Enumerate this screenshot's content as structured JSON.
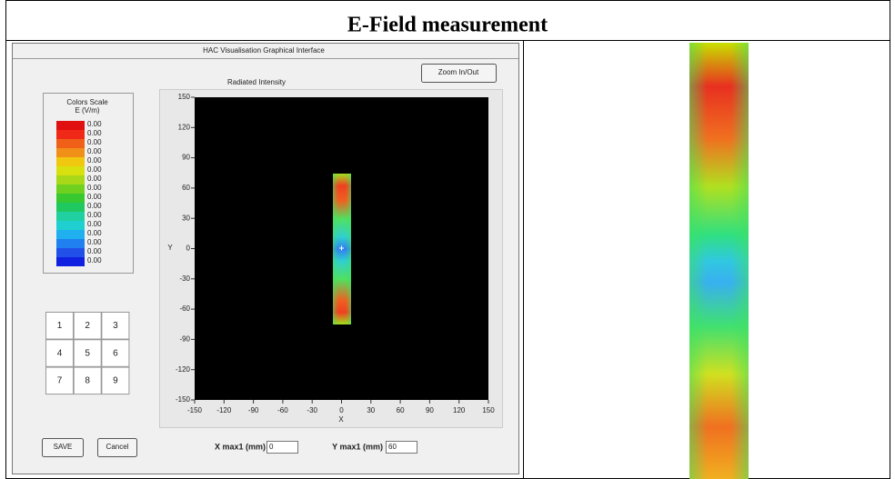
{
  "header": {
    "title": "E-Field measurement"
  },
  "window": {
    "title": "HAC Visualisation Graphical Interface",
    "zoom_button": "Zoom In/Out",
    "plot_title": "Radiated Intensity",
    "color_scale": {
      "title": "Colors Scale",
      "unit": "E (V/m)",
      "labels": [
        "0.00",
        "0.00",
        "0.00",
        "0.00",
        "0.00",
        "0.00",
        "0.00",
        "0.00",
        "0.00",
        "0.00",
        "0.00",
        "0.00",
        "0.00",
        "0.00",
        "0.00",
        "0.00"
      ]
    },
    "keypad": [
      "1",
      "2",
      "3",
      "4",
      "5",
      "6",
      "7",
      "8",
      "9"
    ],
    "plot": {
      "x_label": "X",
      "y_label": "Y",
      "xticks": [
        "-150",
        "-120",
        "-90",
        "-60",
        "-30",
        "0",
        "30",
        "60",
        "90",
        "120",
        "150"
      ],
      "yticks": [
        "150",
        "120",
        "90",
        "60",
        "30",
        "0",
        "-30",
        "-60",
        "-90",
        "-120",
        "-150"
      ]
    },
    "buttons": {
      "save": "SAVE",
      "cancel": "Cancel"
    },
    "fields": [
      {
        "label": "X max1 (mm)",
        "value": "0"
      },
      {
        "label": "Y max1 (mm)",
        "value": "60"
      }
    ]
  }
}
